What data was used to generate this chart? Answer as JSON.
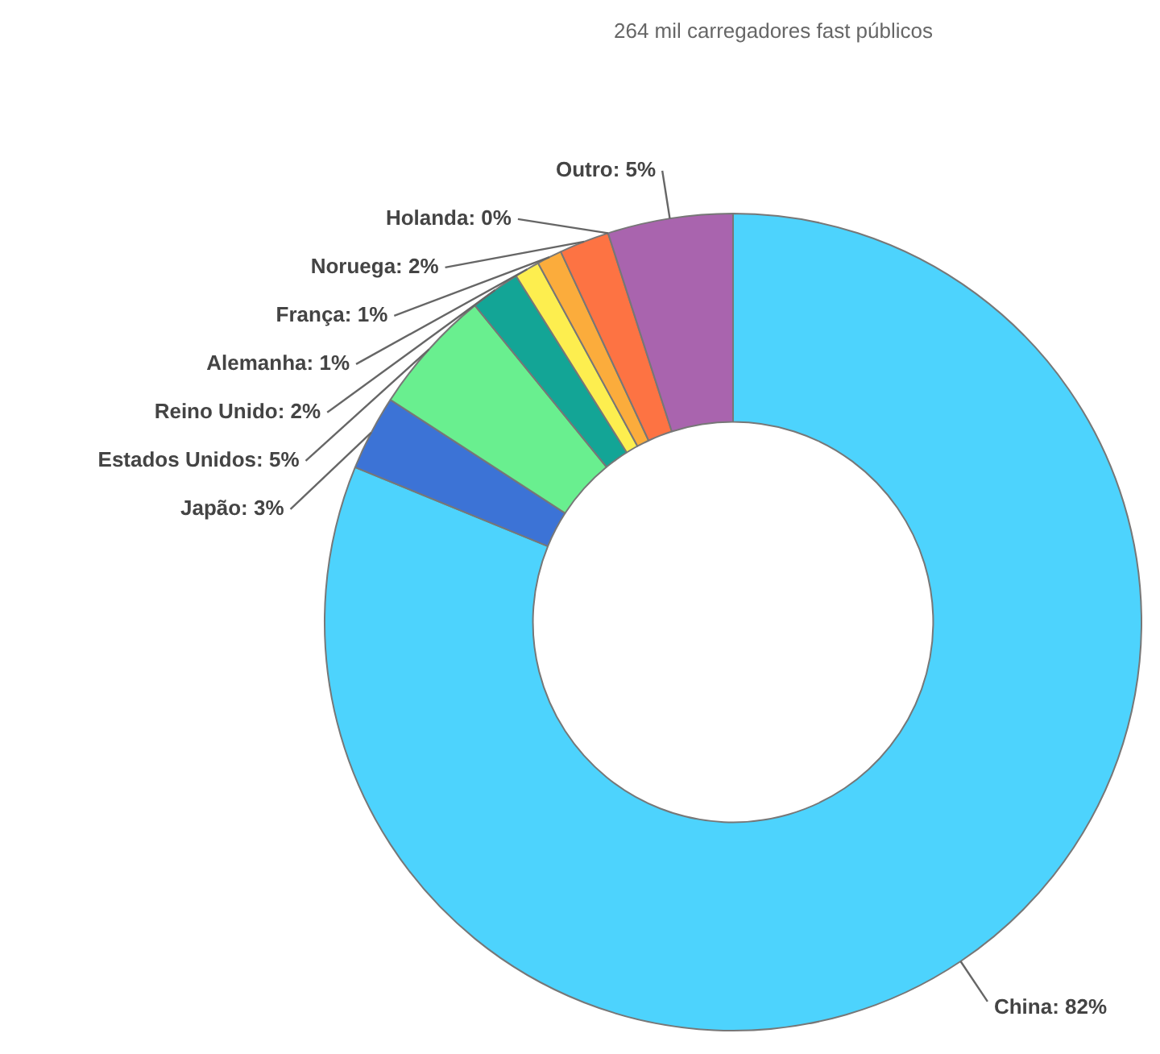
{
  "chart_data": {
    "type": "donut",
    "title": "264 mil carregadores fast públicos",
    "categories": [
      "China",
      "Japão",
      "Estados Unidos",
      "Reino Unido",
      "Alemanha",
      "França",
      "Noruega",
      "Holanda",
      "Outro"
    ],
    "values": [
      82,
      3,
      5,
      2,
      1,
      1,
      2,
      0,
      5
    ],
    "colors": [
      "#4dd3fd",
      "#3c73d6",
      "#69ef8f",
      "#13a596",
      "#fdee4f",
      "#fbac3c",
      "#fd7343",
      "#9a5ee0",
      "#a964ae"
    ],
    "value_labels": [
      "82%",
      "3%",
      "5%",
      "2%",
      "1%",
      "1%",
      "2%",
      "0%",
      "5%"
    ]
  }
}
